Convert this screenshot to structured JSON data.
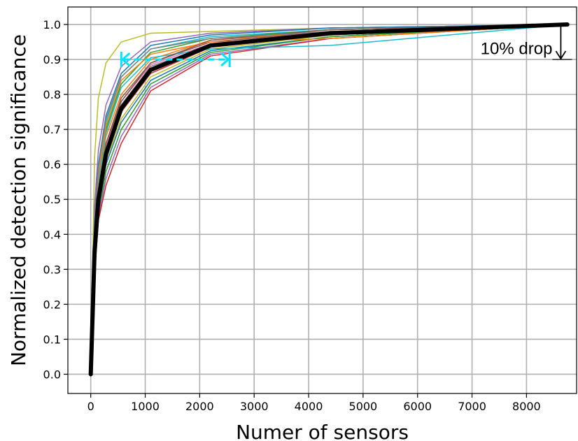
{
  "chart_data": {
    "type": "line",
    "xlabel": "Numer of sensors",
    "ylabel": "Normalized detection significance",
    "xlim": [
      -420,
      8920
    ],
    "ylim": [
      -0.055,
      1.05
    ],
    "xticks": [
      0,
      1000,
      2000,
      3000,
      4000,
      5000,
      6000,
      7000,
      8000
    ],
    "yticks": [
      0.0,
      0.1,
      0.2,
      0.3,
      0.4,
      0.5,
      0.6,
      0.7,
      0.8,
      0.9,
      1.0
    ],
    "xtick_labels": [
      "0",
      "1000",
      "2000",
      "3000",
      "4000",
      "5000",
      "6000",
      "7000",
      "8000"
    ],
    "ytick_labels": [
      "0.0",
      "0.1",
      "0.2",
      "0.3",
      "0.4",
      "0.5",
      "0.6",
      "0.7",
      "0.8",
      "0.9",
      "1.0"
    ],
    "grid": true,
    "x": [
      0,
      70,
      140,
      280,
      560,
      1100,
      2200,
      4400,
      8750
    ],
    "series": [
      {
        "values": [
          0.0,
          0.35,
          0.5,
          0.63,
          0.76,
          0.87,
          0.94,
          0.975,
          1.0
        ],
        "color": "#000000",
        "emphasis": true
      },
      {
        "values": [
          0.0,
          0.62,
          0.79,
          0.89,
          0.95,
          0.975,
          0.98,
          0.99,
          1.0
        ],
        "color": "#bcbd22"
      },
      {
        "values": [
          0.0,
          0.48,
          0.64,
          0.77,
          0.88,
          0.95,
          0.975,
          0.99,
          1.0
        ],
        "color": "#9467bd"
      },
      {
        "values": [
          0.0,
          0.44,
          0.6,
          0.74,
          0.86,
          0.94,
          0.97,
          0.99,
          1.0
        ],
        "color": "#1f77b4"
      },
      {
        "values": [
          0.0,
          0.42,
          0.58,
          0.72,
          0.85,
          0.93,
          0.965,
          0.985,
          1.0
        ],
        "color": "#17becf"
      },
      {
        "values": [
          0.0,
          0.4,
          0.56,
          0.7,
          0.83,
          0.92,
          0.96,
          0.985,
          1.0
        ],
        "color": "#2ca02c"
      },
      {
        "values": [
          0.0,
          0.38,
          0.54,
          0.68,
          0.8,
          0.9,
          0.955,
          0.98,
          1.0
        ],
        "color": "#ff7f0e"
      },
      {
        "values": [
          0.0,
          0.37,
          0.53,
          0.66,
          0.79,
          0.89,
          0.95,
          0.98,
          1.0
        ],
        "color": "#8c564b"
      },
      {
        "values": [
          0.0,
          0.36,
          0.52,
          0.65,
          0.78,
          0.885,
          0.945,
          0.975,
          1.0
        ],
        "color": "#e377c2"
      },
      {
        "values": [
          0.0,
          0.34,
          0.5,
          0.64,
          0.77,
          0.88,
          0.94,
          0.975,
          1.0
        ],
        "color": "#7f7f7f"
      },
      {
        "values": [
          0.0,
          0.33,
          0.49,
          0.62,
          0.75,
          0.86,
          0.935,
          0.97,
          1.0
        ],
        "color": "#d62728"
      },
      {
        "values": [
          0.0,
          0.32,
          0.48,
          0.61,
          0.73,
          0.85,
          0.93,
          0.97,
          1.0
        ],
        "color": "#bcbd22"
      },
      {
        "values": [
          0.0,
          0.31,
          0.47,
          0.6,
          0.72,
          0.84,
          0.925,
          0.965,
          1.0
        ],
        "color": "#1f77b4"
      },
      {
        "values": [
          0.0,
          0.3,
          0.46,
          0.58,
          0.7,
          0.83,
          0.92,
          0.965,
          1.0
        ],
        "color": "#2ca02c"
      },
      {
        "values": [
          0.0,
          0.29,
          0.45,
          0.56,
          0.68,
          0.82,
          0.915,
          0.96,
          1.0
        ],
        "color": "#9467bd"
      },
      {
        "values": [
          0.0,
          0.28,
          0.44,
          0.54,
          0.66,
          0.81,
          0.91,
          0.96,
          1.0
        ],
        "color": "#d62728"
      },
      {
        "values": [
          0.0,
          0.39,
          0.55,
          0.69,
          0.82,
          0.905,
          0.93,
          0.94,
          1.0
        ],
        "color": "#17becf"
      },
      {
        "values": [
          0.0,
          0.41,
          0.57,
          0.71,
          0.84,
          0.915,
          0.95,
          0.96,
          1.0
        ],
        "color": "#ff7f0e"
      },
      {
        "values": [
          0.0,
          0.35,
          0.51,
          0.64,
          0.76,
          0.875,
          0.945,
          0.98,
          1.0
        ],
        "color": "#e377c2"
      },
      {
        "values": [
          0.0,
          0.36,
          0.52,
          0.66,
          0.78,
          0.89,
          0.955,
          0.985,
          1.0
        ],
        "color": "#8c564b"
      },
      {
        "values": [
          0.0,
          0.43,
          0.59,
          0.73,
          0.85,
          0.93,
          0.96,
          0.98,
          1.0
        ],
        "color": "#7f7f7f"
      }
    ],
    "annotations": [
      {
        "text": "10% drop"
      }
    ],
    "reference_line": {
      "y": 0.9,
      "x_from": 560,
      "x_to": 2550,
      "color": "#00e5ff"
    }
  }
}
